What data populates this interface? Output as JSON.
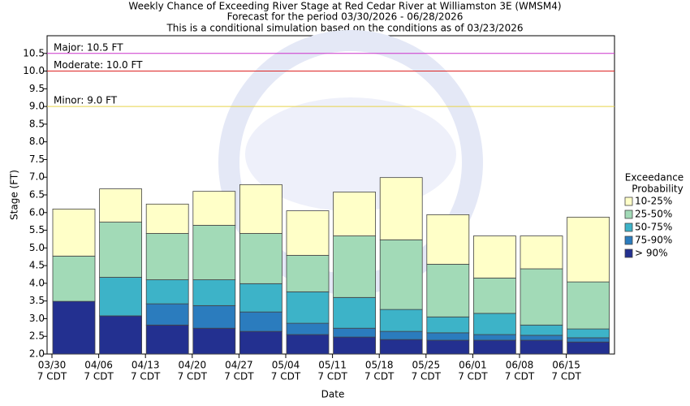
{
  "chart_data": {
    "type": "range-bar",
    "title": "Weekly Chance of Exceeding River Stage at Red Cedar River at Williamston 3E (WMSM4)",
    "subtitles": [
      "Forecast for the period 03/30/2026 - 06/28/2026",
      "This is a conditional simulation based on the conditions as of 03/23/2026"
    ],
    "x_label": "Date",
    "y_label": "Stage (FT)",
    "categories": [
      "03/30",
      "04/06",
      "04/13",
      "04/20",
      "04/27",
      "05/04",
      "05/11",
      "05/18",
      "05/25",
      "06/01",
      "06/08",
      "06/15"
    ],
    "category_sublabels": [
      "7 CDT",
      "7 CDT",
      "7 CDT",
      "7 CDT",
      "7 CDT",
      "7 CDT",
      "7 CDT",
      "7 CDT",
      "7 CDT",
      "7 CDT",
      "7 CDT",
      "7 CDT"
    ],
    "series": [
      {
        "name": "> 90%",
        "color": "#233090",
        "values": [
          3.49,
          3.08,
          2.82,
          2.73,
          2.64,
          2.55,
          2.48,
          2.41,
          2.39,
          2.39,
          2.39,
          2.34
        ]
      },
      {
        "name": "75-90%",
        "color": "#2b7cbe",
        "values": [
          3.49,
          3.08,
          3.42,
          3.37,
          3.19,
          2.87,
          2.73,
          2.64,
          2.6,
          2.55,
          2.53,
          2.46
        ]
      },
      {
        "name": "50-75%",
        "color": "#3db3c8",
        "values": [
          3.49,
          4.17,
          4.1,
          4.1,
          3.99,
          3.76,
          3.6,
          3.26,
          3.05,
          3.15,
          2.82,
          2.71
        ]
      },
      {
        "name": "25-50%",
        "color": "#a2dab7",
        "values": [
          4.77,
          5.73,
          5.41,
          5.64,
          5.41,
          4.79,
          5.34,
          5.23,
          4.54,
          4.15,
          4.41,
          4.04
        ]
      },
      {
        "name": "10-25%",
        "color": "#ffffc8",
        "values": [
          6.1,
          6.67,
          6.24,
          6.6,
          6.79,
          6.05,
          6.58,
          6.99,
          5.94,
          5.34,
          5.34,
          5.87
        ]
      }
    ],
    "thresholds": [
      {
        "label": "Major: 10.5 FT",
        "value": 10.5,
        "color": "#cc33cc"
      },
      {
        "label": "Moderate: 10.0 FT",
        "value": 10.0,
        "color": "#dd2222"
      },
      {
        "label": "Minor: 9.0 FT",
        "value": 9.0,
        "color": "#e8d34a"
      }
    ],
    "legend_title": [
      "Exceedance",
      "Probability"
    ],
    "ylim": [
      2.0,
      11.0
    ],
    "yticks": [
      {
        "value": 2.0,
        "label": "2.0"
      },
      {
        "value": 2.5,
        "label": "2.5"
      },
      {
        "value": 3.0,
        "label": "3.0"
      },
      {
        "value": 3.5,
        "label": "3.5"
      },
      {
        "value": 4.0,
        "label": "4.0"
      },
      {
        "value": 4.5,
        "label": "4.5"
      },
      {
        "value": 5.0,
        "label": "5.0"
      },
      {
        "value": 5.5,
        "label": "5.5"
      },
      {
        "value": 6.0,
        "label": "6.0"
      },
      {
        "value": 6.5,
        "label": "6.5"
      },
      {
        "value": 7.0,
        "label": "7.0"
      },
      {
        "value": 7.5,
        "label": "7.5"
      },
      {
        "value": 8.0,
        "label": "8.0"
      },
      {
        "value": 8.5,
        "label": "8.5"
      },
      {
        "value": 9.0,
        "label": "9.0"
      },
      {
        "value": 9.5,
        "label": "9.5"
      },
      {
        "value": 10.0,
        "label": "10.0"
      },
      {
        "value": 10.5,
        "label": "10.5"
      }
    ]
  }
}
